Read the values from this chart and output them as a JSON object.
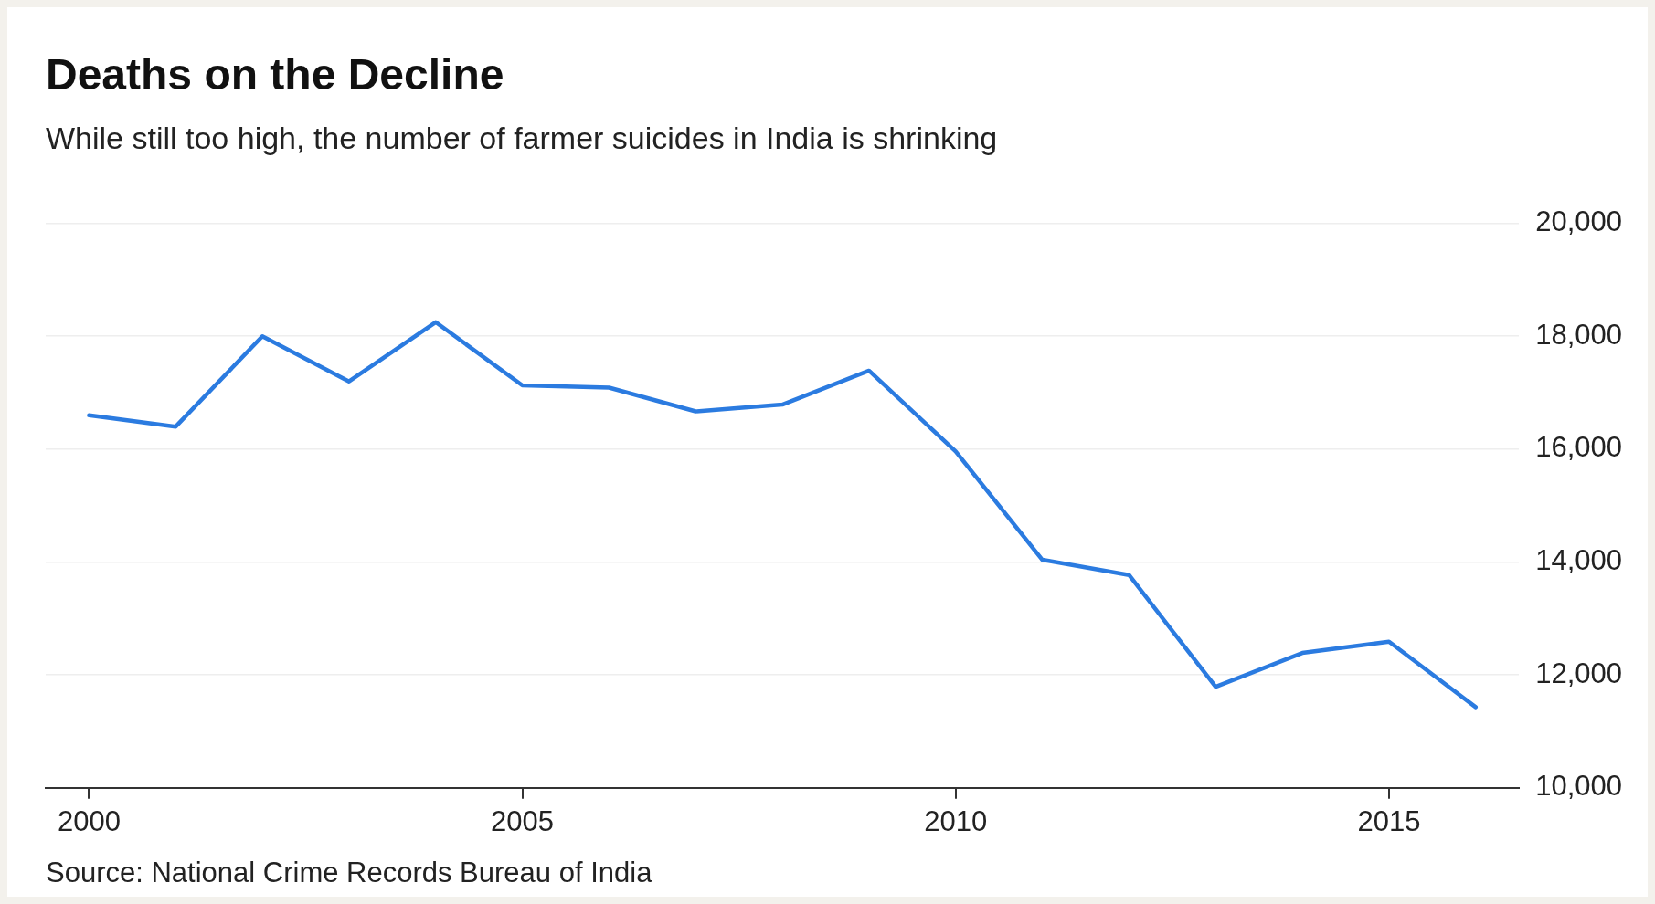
{
  "chart_data": {
    "type": "line",
    "title": "Deaths on the Decline",
    "subtitle": "While still too high, the number of farmer suicides in India is shrinking",
    "x": [
      2000,
      2001,
      2002,
      2003,
      2004,
      2005,
      2006,
      2007,
      2008,
      2009,
      2010,
      2011,
      2012,
      2013,
      2014,
      2015,
      2016
    ],
    "series": [
      {
        "color": "#2b7be0",
        "values": [
          16600,
          16400,
          18000,
          17200,
          18250,
          17130,
          17090,
          16670,
          16790,
          17390,
          15960,
          14040,
          13770,
          11790,
          12390,
          12590,
          11430
        ]
      }
    ],
    "xlim": [
      1999.5,
      2016.5
    ],
    "xticks": [
      2000,
      2005,
      2010,
      2015
    ],
    "ylim": [
      10000,
      20000
    ],
    "yticks": [
      {
        "value": 10000,
        "label": "10,000"
      },
      {
        "value": 12000,
        "label": "12,000"
      },
      {
        "value": 14000,
        "label": "14,000"
      },
      {
        "value": 16000,
        "label": "16,000"
      },
      {
        "value": 18000,
        "label": "18,000"
      },
      {
        "value": 20000,
        "label": "20,000"
      }
    ],
    "grid": "y",
    "legend": false,
    "marker": "none",
    "line_style": "solid",
    "annotations": [
      "Source: National Crime Records Bureau of India"
    ]
  }
}
